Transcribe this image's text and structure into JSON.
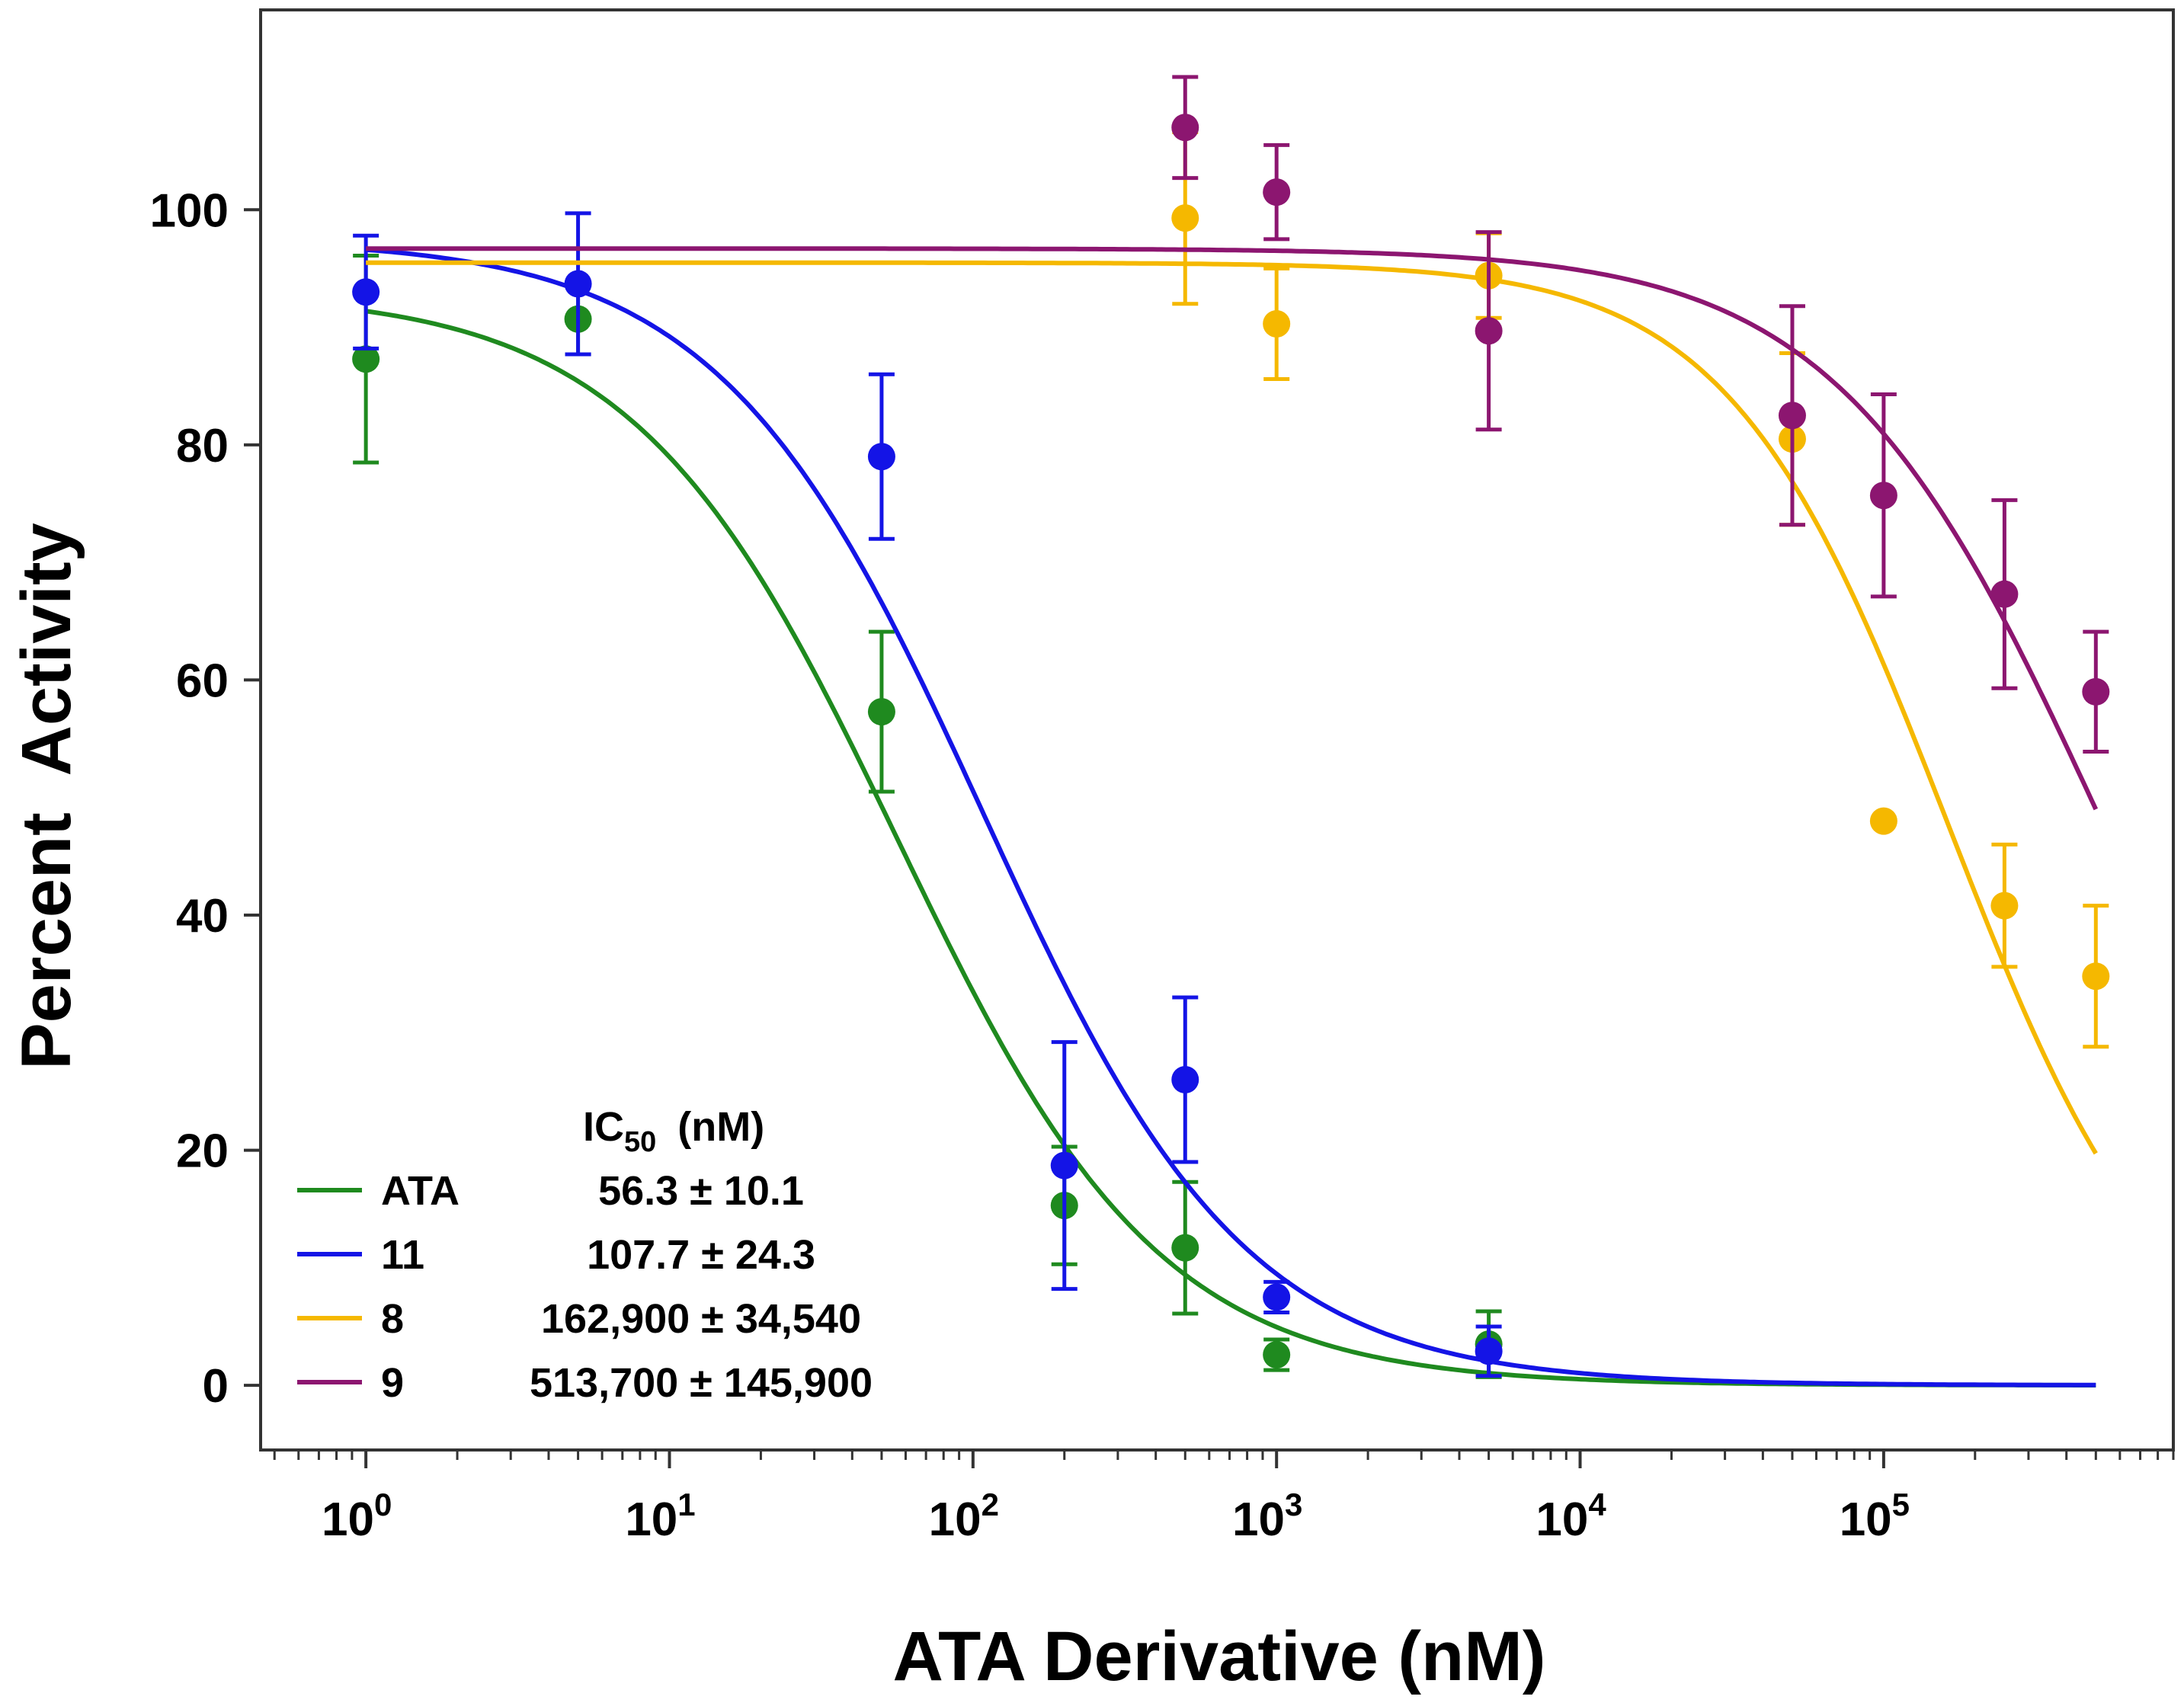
{
  "chart_data": {
    "type": "scatter",
    "xscale": "log",
    "xlabel": "ATA Derivative (nM)",
    "ylabel": "Percent  Activity",
    "xlim": [
      0.45,
      900000
    ],
    "ylim": [
      -5.5,
      117
    ],
    "x_ticks": [
      {
        "value": 1,
        "base": "10",
        "exp": "0"
      },
      {
        "value": 10,
        "base": "10",
        "exp": "1"
      },
      {
        "value": 100,
        "base": "10",
        "exp": "2"
      },
      {
        "value": 1000,
        "base": "10",
        "exp": "3"
      },
      {
        "value": 10000,
        "base": "10",
        "exp": "4"
      },
      {
        "value": 100000,
        "base": "10",
        "exp": "5"
      }
    ],
    "y_ticks": [
      0,
      20,
      40,
      60,
      80,
      100
    ],
    "legend": {
      "header_main": "IC",
      "header_sub": "50",
      "header_unit": "(nM)",
      "position": "bottom-left"
    },
    "series": [
      {
        "name": "ATA",
        "ic50_label": "56.3 ± 10.1",
        "color": "#1f8a1f",
        "fit": {
          "top": 93,
          "bottom": 0,
          "ic50": 56.3,
          "hill": 1.0
        },
        "points": [
          {
            "x": 1,
            "y": 87.3,
            "err": 8.8
          },
          {
            "x": 5,
            "y": 90.7,
            "err": 3
          },
          {
            "x": 50,
            "y": 57.3,
            "err": 6.8
          },
          {
            "x": 200,
            "y": 15.3,
            "err": 5
          },
          {
            "x": 500,
            "y": 11.7,
            "err": 5.6
          },
          {
            "x": 1000,
            "y": 2.6,
            "err": 1.3
          },
          {
            "x": 5000,
            "y": 3.5,
            "err": 2.8
          }
        ]
      },
      {
        "name": "11",
        "ic50_label": "107.7 ± 24.3",
        "color": "#1414e6",
        "fit": {
          "top": 97.5,
          "bottom": 0,
          "ic50": 107.7,
          "hill": 1.0
        },
        "points": [
          {
            "x": 1,
            "y": 93,
            "err": 4.8
          },
          {
            "x": 5,
            "y": 93.7,
            "err": 6
          },
          {
            "x": 50,
            "y": 79,
            "err": 7
          },
          {
            "x": 200,
            "y": 18.7,
            "err": 10.5
          },
          {
            "x": 500,
            "y": 26,
            "err": 7
          },
          {
            "x": 1000,
            "y": 7.5,
            "err": 1.3
          },
          {
            "x": 5000,
            "y": 2.9,
            "err": 2.1
          }
        ]
      },
      {
        "name": "8",
        "ic50_label": "162,900 ± 34,540",
        "color": "#f5b800",
        "fit": {
          "top": 95.5,
          "bottom": 0,
          "ic50": 162900,
          "hill": 1.2
        },
        "points": [
          {
            "x": 500,
            "y": 99.3,
            "err": 7.3
          },
          {
            "x": 1000,
            "y": 90.3,
            "err": 4.7
          },
          {
            "x": 5000,
            "y": 94.4,
            "err": 3.6
          },
          {
            "x": 50000,
            "y": 80.5,
            "err": 7.3
          },
          {
            "x": 100000,
            "y": 48,
            "err": 0
          },
          {
            "x": 250000,
            "y": 40.8,
            "err": 5.2
          },
          {
            "x": 500000,
            "y": 34.8,
            "err": 6
          }
        ]
      },
      {
        "name": "9",
        "ic50_label": "513,700 ± 145,900",
        "color": "#8c1670",
        "fit": {
          "top": 96.7,
          "bottom": 0,
          "ic50": 513700,
          "hill": 1.0
        },
        "points": [
          {
            "x": 500,
            "y": 107,
            "err": 4.3
          },
          {
            "x": 1000,
            "y": 101.5,
            "err": 4
          },
          {
            "x": 5000,
            "y": 89.7,
            "err": 8.4
          },
          {
            "x": 50000,
            "y": 82.5,
            "err": 9.3
          },
          {
            "x": 100000,
            "y": 75.7,
            "err": 8.6
          },
          {
            "x": 250000,
            "y": 67.3,
            "err": 8
          },
          {
            "x": 500000,
            "y": 59,
            "err": 5.1
          }
        ]
      }
    ]
  }
}
